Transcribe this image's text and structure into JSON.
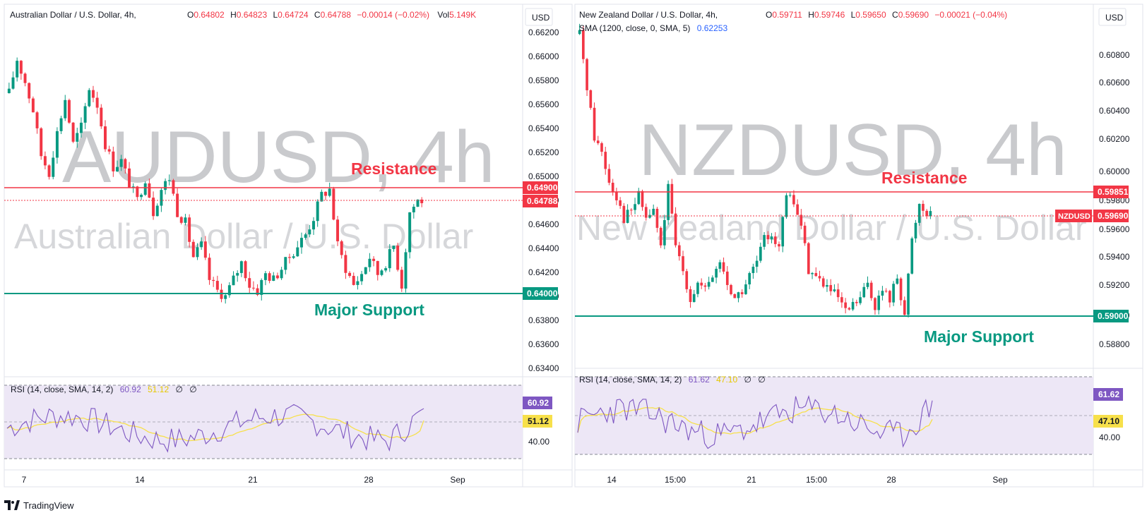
{
  "panels": [
    {
      "id": "aud",
      "watermark": "AUDUSD, 4h",
      "watermark_sub": "Australian Dollar / U.S. Dollar",
      "header": {
        "title": "Australian Dollar / U.S. Dollar, 4h,",
        "o": "0.64802",
        "h": "0.64823",
        "l": "0.64724",
        "c": "0.64788",
        "chg": "−0.00014 (−0.02%)",
        "vol": "5.149K",
        "sma": ""
      },
      "currency": "USD",
      "price_ticks": [
        "0.66200",
        "0.66000",
        "0.65800",
        "0.65600",
        "0.65400",
        "0.65200",
        "0.65000",
        "0.64800",
        "0.64600",
        "0.64400",
        "0.64200",
        "0.64000",
        "0.63800",
        "0.63600",
        "0.63400"
      ],
      "levels": {
        "resistance": {
          "label": "Resistance",
          "value": "0.64900",
          "color": "#f23645"
        },
        "support": {
          "label": "Major Support",
          "value": "0.64000",
          "color": "#089981"
        },
        "last": {
          "value": "0.64788",
          "symbol": "",
          "color": "#f23645"
        }
      },
      "rsi": {
        "header": "RSI (14, close, SMA, 14, 2)",
        "value": "60.92",
        "sma_value": "51.12",
        "na1": "∅",
        "na2": "∅",
        "tick": "40.00"
      },
      "time_ticks": [
        "7",
        "14",
        "21",
        "28",
        "Sep"
      ]
    },
    {
      "id": "nzd",
      "watermark": "NZDUSD, 4h",
      "watermark_sub": "New Zealand Dollar / U.S. Dollar",
      "header": {
        "title": "New Zealand Dollar / U.S. Dollar, 4h,",
        "o": "0.59711",
        "h": "0.59746",
        "l": "0.59650",
        "c": "0.59690",
        "chg": "−0.00021 (−0.04%)",
        "vol": "",
        "sma": "SMA (1200, close, 0, SMA, 5)",
        "sma_value": "0.62253"
      },
      "currency": "USD",
      "price_ticks": [
        "0.60800",
        "0.60600",
        "0.60400",
        "0.60200",
        "0.60000",
        "0.59800",
        "0.59600",
        "0.59400",
        "0.59200",
        "0.59000",
        "0.58800"
      ],
      "levels": {
        "resistance": {
          "label": "Resistance",
          "value": "0.59851",
          "color": "#f23645"
        },
        "support": {
          "label": "Major Support",
          "value": "0.59000",
          "color": "#089981"
        },
        "last": {
          "value": "0.59690",
          "symbol": "NZDUSD",
          "color": "#f23645"
        }
      },
      "rsi": {
        "header": "RSI (14, close, SMA, 14, 2)",
        "value": "61.62",
        "sma_value": "47.10",
        "na1": "∅",
        "na2": "∅",
        "tick": "40.00"
      },
      "time_ticks": [
        "14",
        "15:00",
        "21",
        "15:00",
        "28",
        "Sep"
      ]
    }
  ],
  "colors": {
    "up": "#089981",
    "down": "#f23645",
    "rsi_line": "#7e57c2",
    "rsi_sma": "#f7e04a",
    "rsi_bg": "#ede7f6"
  },
  "brand": {
    "name": "TradingView",
    "logo": "tradingview-logo-icon"
  },
  "chart_data": [
    {
      "type": "candlestick",
      "title": "Australian Dollar / U.S. Dollar, 4h",
      "ylim": [
        0.634,
        0.663
      ],
      "x_ticks": [
        "7",
        "14",
        "21",
        "28",
        "Sep"
      ],
      "hlines": [
        {
          "label": "Resistance",
          "y": 0.649
        },
        {
          "label": "Major Support",
          "y": 0.64
        }
      ],
      "series": [
        {
          "name": "AUDUSD",
          "close_path": [
            0.6575,
            0.6605,
            0.6585,
            0.656,
            0.652,
            0.6505,
            0.654,
            0.657,
            0.653,
            0.6545,
            0.658,
            0.6565,
            0.653,
            0.651,
            0.6515,
            0.6495,
            0.648,
            0.65,
            0.647,
            0.649,
            0.65,
            0.647,
            0.646,
            0.643,
            0.644,
            0.641,
            0.64,
            0.6395,
            0.641,
            0.6425,
            0.6405,
            0.64,
            0.6415,
            0.641,
            0.642,
            0.643,
            0.644,
            0.645,
            0.6465,
            0.6485,
            0.649,
            0.644,
            0.642,
            0.6405,
            0.6415,
            0.643,
            0.6415,
            0.6425,
            0.644,
            0.6405,
            0.647,
            0.648
          ]
        }
      ],
      "rsi": {
        "value": 60.92,
        "sma": 51.12
      }
    },
    {
      "type": "candlestick",
      "title": "New Zealand Dollar / U.S. Dollar, 4h",
      "ylim": [
        0.5875,
        0.6092
      ],
      "x_ticks": [
        "14",
        "15:00",
        "21",
        "15:00",
        "28",
        "Sep"
      ],
      "hlines": [
        {
          "label": "Resistance",
          "y": 0.59851
        },
        {
          "label": "Major Support",
          "y": 0.59
        }
      ],
      "series": [
        {
          "name": "NZDUSD",
          "close_path": [
            0.609,
            0.6055,
            0.602,
            0.601,
            0.599,
            0.598,
            0.5965,
            0.597,
            0.598,
            0.5965,
            0.597,
            0.5945,
            0.5985,
            0.5945,
            0.593,
            0.591,
            0.592,
            0.5915,
            0.5925,
            0.5935,
            0.592,
            0.591,
            0.5915,
            0.5925,
            0.5935,
            0.595,
            0.5955,
            0.5945,
            0.598,
            0.5975,
            0.596,
            0.593,
            0.5925,
            0.592,
            0.5915,
            0.591,
            0.59,
            0.5905,
            0.591,
            0.592,
            0.5905,
            0.5915,
            0.591,
            0.5925,
            0.59,
            0.595,
            0.5975,
            0.5969
          ]
        }
      ],
      "rsi": {
        "value": 61.62,
        "sma": 47.1
      }
    }
  ]
}
